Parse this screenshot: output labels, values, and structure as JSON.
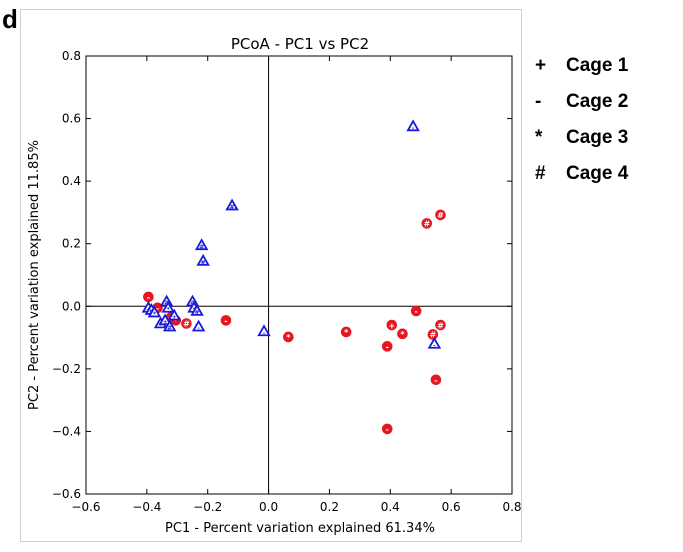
{
  "panel_letter": "d",
  "chart_data": {
    "type": "scatter",
    "title": "PCoA - PC1 vs PC2",
    "xlabel": "PC1 - Percent variation explained 61.34%",
    "ylabel": "PC2 - Percent variation explained 11.85%",
    "xlim": [
      -0.6,
      0.8
    ],
    "ylim": [
      -0.6,
      0.8
    ],
    "xticks": [
      "−0.6",
      "−0.4",
      "−0.2",
      "0.0",
      "0.2",
      "0.4",
      "0.6",
      "0.8"
    ],
    "yticks": [
      "−0.6",
      "−0.4",
      "−0.2",
      "0.0",
      "0.2",
      "0.4",
      "0.6",
      "0.8"
    ],
    "grid": false,
    "reference_lines": {
      "x": 0,
      "y": 0
    },
    "colors": {
      "red_group": "#e8161e",
      "blue_group": "#1a1ad6"
    },
    "series": [
      {
        "marker": "circle",
        "color": "#e8161e",
        "points": [
          {
            "x": -0.395,
            "y": 0.03,
            "cage": "-"
          },
          {
            "x": -0.365,
            "y": -0.005,
            "cage": "-"
          },
          {
            "x": -0.32,
            "y": -0.035,
            "cage": "+"
          },
          {
            "x": -0.305,
            "y": -0.045,
            "cage": "*"
          },
          {
            "x": -0.27,
            "y": -0.055,
            "cage": "#"
          },
          {
            "x": -0.14,
            "y": -0.045,
            "cage": "-"
          },
          {
            "x": 0.065,
            "y": -0.098,
            "cage": "*"
          },
          {
            "x": 0.255,
            "y": -0.082,
            "cage": "*"
          },
          {
            "x": 0.39,
            "y": -0.128,
            "cage": "-"
          },
          {
            "x": 0.405,
            "y": -0.06,
            "cage": "+"
          },
          {
            "x": 0.44,
            "y": -0.088,
            "cage": "*"
          },
          {
            "x": 0.485,
            "y": -0.015,
            "cage": "-"
          },
          {
            "x": 0.52,
            "y": 0.265,
            "cage": "#"
          },
          {
            "x": 0.54,
            "y": -0.09,
            "cage": "#"
          },
          {
            "x": 0.565,
            "y": 0.292,
            "cage": "#"
          },
          {
            "x": 0.565,
            "y": -0.06,
            "cage": "#"
          },
          {
            "x": 0.55,
            "y": -0.235,
            "cage": "-"
          },
          {
            "x": 0.39,
            "y": -0.392,
            "cage": "-"
          }
        ]
      },
      {
        "marker": "triangle",
        "color": "#1a1ad6",
        "points": [
          {
            "x": -0.395,
            "y": -0.005,
            "cage": "+"
          },
          {
            "x": -0.385,
            "y": -0.012,
            "cage": "#"
          },
          {
            "x": -0.375,
            "y": -0.02,
            "cage": "*"
          },
          {
            "x": -0.355,
            "y": -0.055,
            "cage": "-"
          },
          {
            "x": -0.34,
            "y": -0.045,
            "cage": "+"
          },
          {
            "x": -0.335,
            "y": 0.015,
            "cage": "#"
          },
          {
            "x": -0.33,
            "y": -0.005,
            "cage": "*"
          },
          {
            "x": -0.325,
            "y": -0.065,
            "cage": "#"
          },
          {
            "x": -0.31,
            "y": -0.03,
            "cage": "+"
          },
          {
            "x": -0.25,
            "y": 0.015,
            "cage": "#"
          },
          {
            "x": -0.245,
            "y": -0.005,
            "cage": "*"
          },
          {
            "x": -0.235,
            "y": -0.015,
            "cage": "#"
          },
          {
            "x": -0.23,
            "y": -0.065,
            "cage": "-"
          },
          {
            "x": -0.22,
            "y": 0.195,
            "cage": "#"
          },
          {
            "x": -0.215,
            "y": 0.145,
            "cage": "#"
          },
          {
            "x": -0.12,
            "y": 0.322,
            "cage": "#"
          },
          {
            "x": -0.015,
            "y": -0.08,
            "cage": "-"
          },
          {
            "x": 0.475,
            "y": 0.575,
            "cage": "-"
          },
          {
            "x": 0.545,
            "y": -0.12,
            "cage": "-"
          }
        ]
      }
    ]
  },
  "legend": {
    "placement": "right",
    "items": [
      {
        "symbol": "+",
        "label": "Cage 1"
      },
      {
        "symbol": "-",
        "label": "Cage 2"
      },
      {
        "symbol": "*",
        "label": "Cage 3"
      },
      {
        "symbol": "#",
        "label": "Cage 4"
      }
    ]
  }
}
